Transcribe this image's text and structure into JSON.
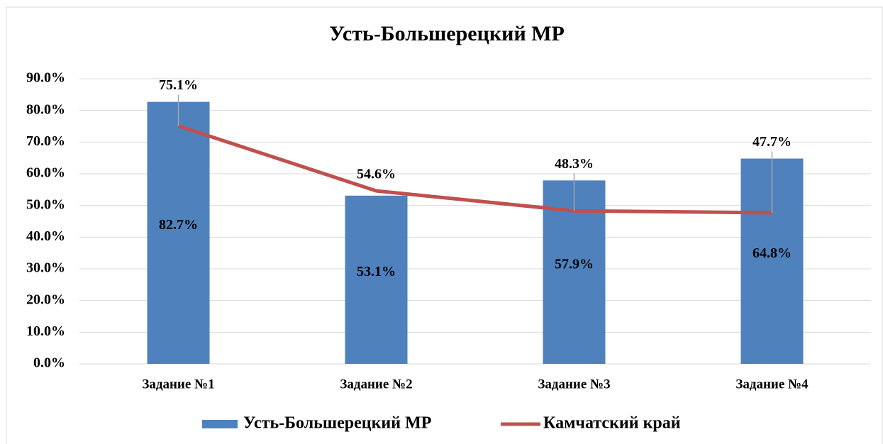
{
  "chart_data": {
    "type": "bar",
    "title": "Усть-Большерецкий МР",
    "categories": [
      "Задание №1",
      "Задание №2",
      "Задание №3",
      "Задание №4"
    ],
    "series": [
      {
        "name": "Усть-Большерецкий МР",
        "type": "bar",
        "color": "#4f81bd",
        "values": [
          82.7,
          53.1,
          57.9,
          64.8
        ],
        "value_labels": [
          "82.7%",
          "53.1%",
          "57.9%",
          "64.8%"
        ]
      },
      {
        "name": "Камчатский край",
        "type": "line",
        "color": "#c0504d",
        "values": [
          75.1,
          54.6,
          48.3,
          47.7
        ],
        "value_labels": [
          "75.1%",
          "54.6%",
          "48.3%",
          "47.7%"
        ]
      }
    ],
    "ylim": [
      0,
      90
    ],
    "yticks": [
      {
        "value": 0,
        "label": "0.0%"
      },
      {
        "value": 10,
        "label": "10.0%"
      },
      {
        "value": 20,
        "label": "20.0%"
      },
      {
        "value": 30,
        "label": "30.0%"
      },
      {
        "value": 40,
        "label": "40.0%"
      },
      {
        "value": 50,
        "label": "50.0%"
      },
      {
        "value": 60,
        "label": "60.0%"
      },
      {
        "value": 70,
        "label": "70.0%"
      },
      {
        "value": 80,
        "label": "80.0%"
      },
      {
        "value": 90,
        "label": "90.0%"
      }
    ],
    "grid": true,
    "legend": "bottom"
  }
}
